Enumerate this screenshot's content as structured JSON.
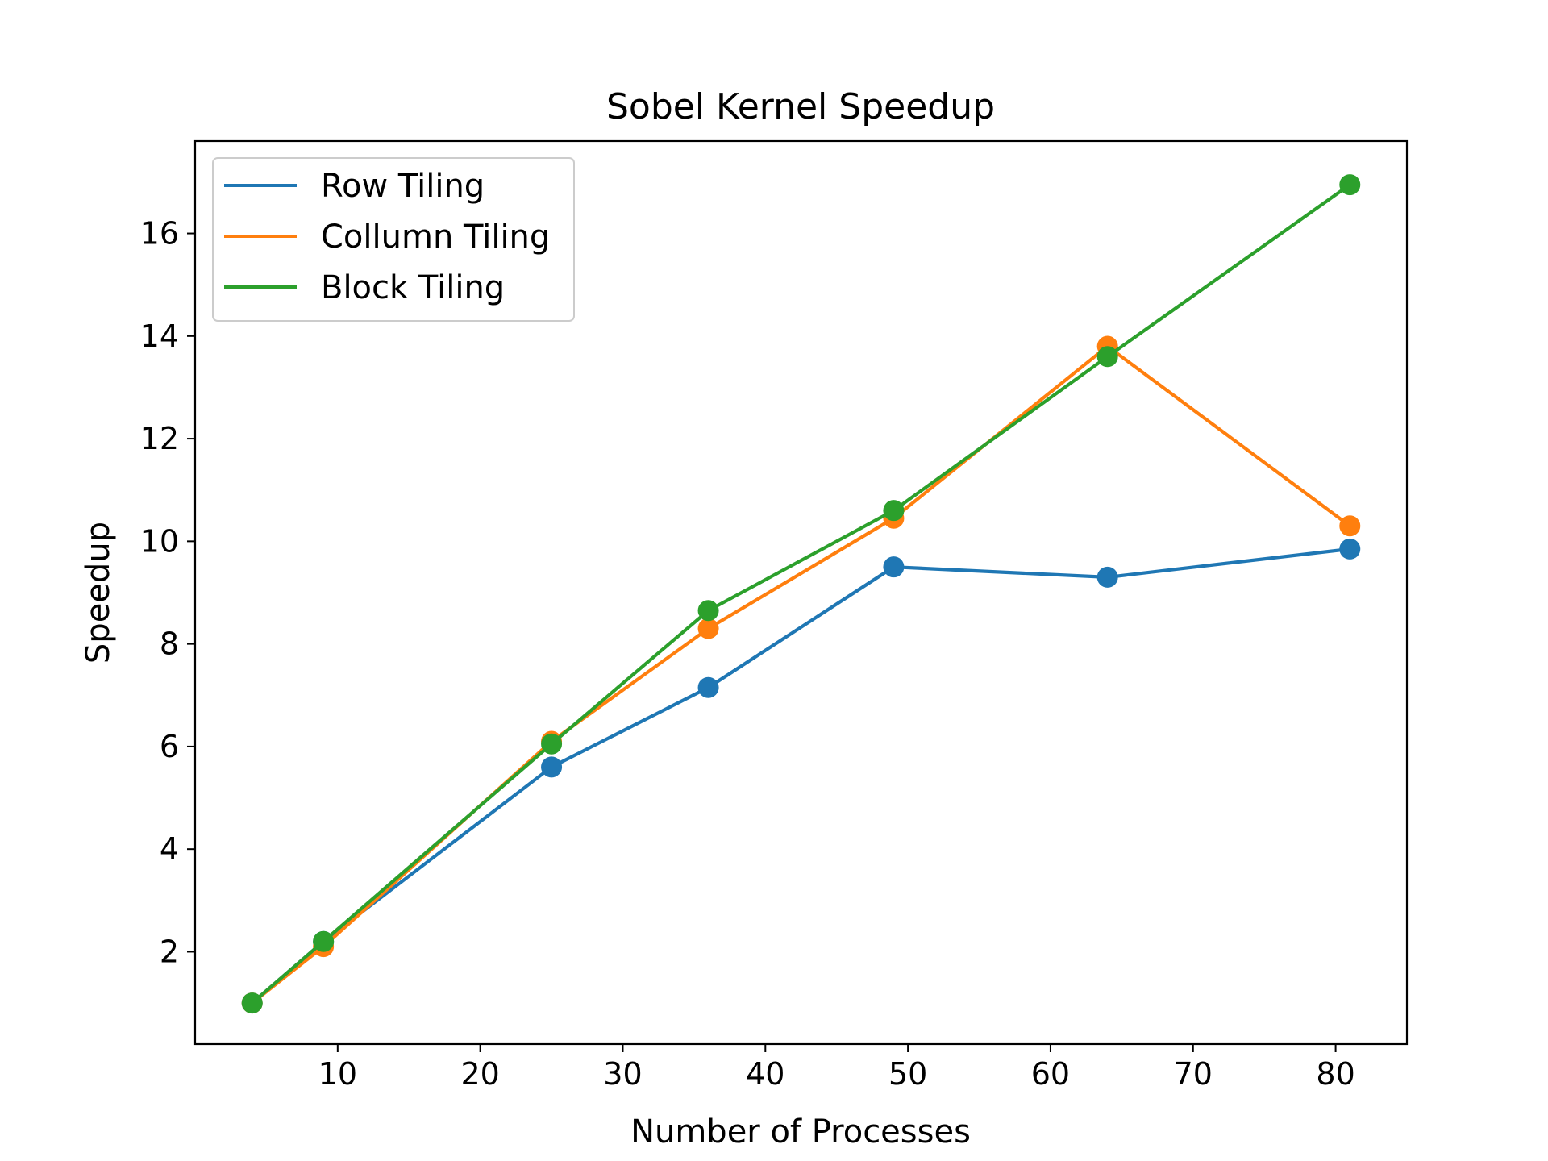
{
  "chart_data": {
    "type": "line",
    "title": "Sobel Kernel Speedup",
    "xlabel": "Number of Processes",
    "ylabel": "Speedup",
    "x": [
      4,
      9,
      25,
      36,
      49,
      64,
      81
    ],
    "xlim": [
      0,
      85
    ],
    "ylim": [
      0.2,
      17.8
    ],
    "xticks": [
      10,
      20,
      30,
      40,
      50,
      60,
      70,
      80
    ],
    "yticks": [
      2,
      4,
      6,
      8,
      10,
      12,
      14,
      16
    ],
    "grid": false,
    "legend_position": "top-left",
    "markers": true,
    "series": [
      {
        "name": "Row Tiling",
        "color": "#1f77b4",
        "values": [
          1.0,
          2.2,
          5.6,
          7.15,
          9.5,
          9.3,
          9.85
        ]
      },
      {
        "name": "Collumn Tiling",
        "color": "#ff7f0e",
        "values": [
          1.0,
          2.1,
          6.1,
          8.3,
          10.45,
          13.8,
          10.3
        ]
      },
      {
        "name": "Block Tiling",
        "color": "#2ca02c",
        "values": [
          1.0,
          2.2,
          6.05,
          8.65,
          10.6,
          13.6,
          16.95
        ]
      }
    ]
  }
}
